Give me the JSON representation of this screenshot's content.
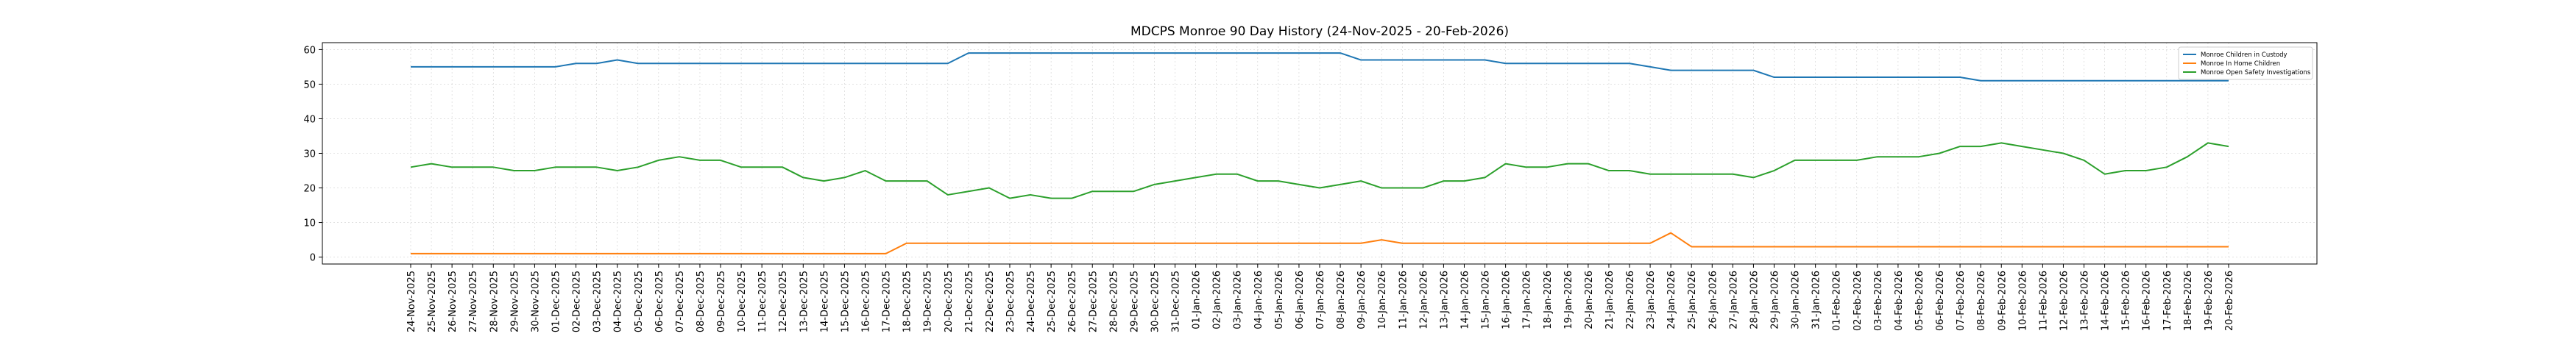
{
  "chart_data": {
    "type": "line",
    "title": "MDCPS Monroe 90 Day History (24-Nov-2025 - 20-Feb-2026)",
    "xlabel": "",
    "ylabel": "",
    "ylim": [
      -2,
      62
    ],
    "yticks": [
      0,
      10,
      20,
      30,
      40,
      50,
      60
    ],
    "grid": true,
    "legend_position": "top-right",
    "x": [
      "24-Nov-2025",
      "25-Nov-2025",
      "26-Nov-2025",
      "27-Nov-2025",
      "28-Nov-2025",
      "29-Nov-2025",
      "30-Nov-2025",
      "01-Dec-2025",
      "02-Dec-2025",
      "03-Dec-2025",
      "04-Dec-2025",
      "05-Dec-2025",
      "06-Dec-2025",
      "07-Dec-2025",
      "08-Dec-2025",
      "09-Dec-2025",
      "10-Dec-2025",
      "11-Dec-2025",
      "12-Dec-2025",
      "13-Dec-2025",
      "14-Dec-2025",
      "15-Dec-2025",
      "16-Dec-2025",
      "17-Dec-2025",
      "18-Dec-2025",
      "19-Dec-2025",
      "20-Dec-2025",
      "21-Dec-2025",
      "22-Dec-2025",
      "23-Dec-2025",
      "24-Dec-2025",
      "25-Dec-2025",
      "26-Dec-2025",
      "27-Dec-2025",
      "28-Dec-2025",
      "29-Dec-2025",
      "30-Dec-2025",
      "31-Dec-2025",
      "01-Jan-2026",
      "02-Jan-2026",
      "03-Jan-2026",
      "04-Jan-2026",
      "05-Jan-2026",
      "06-Jan-2026",
      "07-Jan-2026",
      "08-Jan-2026",
      "09-Jan-2026",
      "10-Jan-2026",
      "11-Jan-2026",
      "12-Jan-2026",
      "13-Jan-2026",
      "14-Jan-2026",
      "15-Jan-2026",
      "16-Jan-2026",
      "17-Jan-2026",
      "18-Jan-2026",
      "19-Jan-2026",
      "20-Jan-2026",
      "21-Jan-2026",
      "22-Jan-2026",
      "23-Jan-2026",
      "24-Jan-2026",
      "25-Jan-2026",
      "26-Jan-2026",
      "27-Jan-2026",
      "28-Jan-2026",
      "29-Jan-2026",
      "30-Jan-2026",
      "31-Jan-2026",
      "01-Feb-2026",
      "02-Feb-2026",
      "03-Feb-2026",
      "04-Feb-2026",
      "05-Feb-2026",
      "06-Feb-2026",
      "07-Feb-2026",
      "08-Feb-2026",
      "09-Feb-2026",
      "10-Feb-2026",
      "11-Feb-2026",
      "12-Feb-2026",
      "13-Feb-2026",
      "14-Feb-2026",
      "15-Feb-2026",
      "16-Feb-2026",
      "17-Feb-2026",
      "18-Feb-2026",
      "19-Feb-2026",
      "20-Feb-2026"
    ],
    "series": [
      {
        "name": "Monroe Children in Custody",
        "color": "#1f77b4",
        "values": [
          55,
          55,
          55,
          55,
          55,
          55,
          55,
          55,
          56,
          56,
          57,
          56,
          56,
          56,
          56,
          56,
          56,
          56,
          56,
          56,
          56,
          56,
          56,
          56,
          56,
          56,
          56,
          59,
          59,
          59,
          59,
          59,
          59,
          59,
          59,
          59,
          59,
          59,
          59,
          59,
          59,
          59,
          59,
          59,
          59,
          59,
          57,
          57,
          57,
          57,
          57,
          57,
          57,
          56,
          56,
          56,
          56,
          56,
          56,
          56,
          55,
          54,
          54,
          54,
          54,
          54,
          52,
          52,
          52,
          52,
          52,
          52,
          52,
          52,
          52,
          52,
          51,
          51,
          51,
          51,
          51,
          51,
          51,
          51,
          51,
          51,
          51,
          51,
          51
        ]
      },
      {
        "name": "Monroe In Home Children",
        "color": "#ff7f0e",
        "values": [
          1,
          1,
          1,
          1,
          1,
          1,
          1,
          1,
          1,
          1,
          1,
          1,
          1,
          1,
          1,
          1,
          1,
          1,
          1,
          1,
          1,
          1,
          1,
          1,
          4,
          4,
          4,
          4,
          4,
          4,
          4,
          4,
          4,
          4,
          4,
          4,
          4,
          4,
          4,
          4,
          4,
          4,
          4,
          4,
          4,
          4,
          4,
          5,
          4,
          4,
          4,
          4,
          4,
          4,
          4,
          4,
          4,
          4,
          4,
          4,
          4,
          7,
          3,
          3,
          3,
          3,
          3,
          3,
          3,
          3,
          3,
          3,
          3,
          3,
          3,
          3,
          3,
          3,
          3,
          3,
          3,
          3,
          3,
          3,
          3,
          3,
          3,
          3,
          3
        ]
      },
      {
        "name": "Monroe Open Safety Investigations",
        "color": "#2ca02c",
        "values": [
          26,
          27,
          26,
          26,
          26,
          25,
          25,
          26,
          26,
          26,
          25,
          26,
          28,
          29,
          28,
          28,
          26,
          26,
          26,
          23,
          22,
          23,
          25,
          22,
          22,
          22,
          18,
          19,
          20,
          17,
          18,
          17,
          17,
          19,
          19,
          19,
          21,
          22,
          23,
          24,
          24,
          22,
          22,
          21,
          20,
          21,
          22,
          20,
          20,
          20,
          22,
          22,
          23,
          27,
          26,
          26,
          27,
          27,
          25,
          25,
          24,
          24,
          24,
          24,
          24,
          23,
          25,
          28,
          28,
          28,
          28,
          29,
          29,
          29,
          30,
          32,
          32,
          33,
          32,
          31,
          30,
          28,
          24,
          25,
          25,
          26,
          29,
          33,
          32
        ]
      }
    ]
  }
}
